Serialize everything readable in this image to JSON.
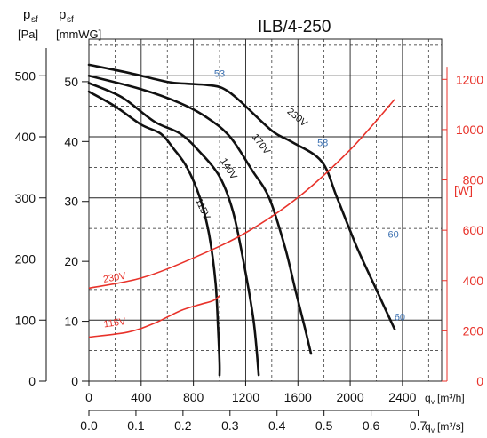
{
  "chart_data": {
    "type": "line",
    "title": "ILB/4-250",
    "grid": true,
    "left_axis_pa": {
      "label_main": "p",
      "label_sub": "sf",
      "unit": "[Pa]",
      "range": [
        0,
        560
      ],
      "ticks": [
        0,
        100,
        200,
        300,
        400,
        500
      ]
    },
    "left_axis_mmwg": {
      "label_main": "p",
      "label_sub": "sf",
      "unit": "[mmWG]",
      "ticks": [
        0,
        10,
        20,
        30,
        40,
        50
      ]
    },
    "x_axis_m3h": {
      "label_main": "q",
      "label_sub": "v",
      "unit": "[m³/h]",
      "range": [
        0,
        2700
      ],
      "ticks": [
        0,
        400,
        800,
        1200,
        1600,
        2000,
        2400
      ]
    },
    "x_axis_m3s": {
      "label_main": "q",
      "label_sub": "v",
      "unit": "[m³/s]",
      "ticks": [
        "0.0",
        "0.1",
        "0.2",
        "0.3",
        "0.4",
        "0.5",
        "0.6",
        "0.7"
      ]
    },
    "right_axis_w": {
      "unit": "[W]",
      "range": [
        0,
        1360
      ],
      "ticks": [
        0,
        200,
        400,
        600,
        800,
        1000,
        1200
      ]
    },
    "pressure_series": [
      {
        "name": "230V",
        "x": [
          0,
          300,
          600,
          750,
          900,
          1020,
          1150,
          1400,
          1550,
          1780,
          1900,
          2050,
          2200,
          2340
        ],
        "y": [
          518,
          505,
          490,
          487,
          485,
          480,
          460,
          410,
          392,
          360,
          300,
          220,
          150,
          85
        ]
      },
      {
        "name": "170V",
        "x": [
          0,
          400,
          700,
          900,
          1080,
          1250,
          1380,
          1500,
          1580,
          1650,
          1700
        ],
        "y": [
          500,
          478,
          455,
          432,
          400,
          345,
          300,
          220,
          150,
          90,
          45
        ]
      },
      {
        "name": "140V",
        "x": [
          0,
          250,
          500,
          700,
          850,
          1000,
          1100,
          1180,
          1260,
          1300
        ],
        "y": [
          488,
          465,
          425,
          405,
          375,
          335,
          280,
          200,
          100,
          10
        ]
      },
      {
        "name": "115V",
        "x": [
          0,
          200,
          400,
          550,
          650,
          750,
          850,
          920,
          970,
          990,
          1000,
          1000
        ],
        "y": [
          474,
          450,
          420,
          405,
          380,
          350,
          300,
          240,
          160,
          80,
          30,
          10
        ]
      }
    ],
    "power_series": [
      {
        "name": "230V",
        "x": [
          0,
          400,
          800,
          1200,
          1600,
          2000,
          2340
        ],
        "y": [
          370,
          410,
          490,
          590,
          730,
          920,
          1120
        ]
      },
      {
        "name": "115V",
        "x": [
          0,
          300,
          500,
          700,
          850,
          950,
          1000
        ],
        "y": [
          175,
          195,
          230,
          280,
          305,
          320,
          340
        ]
      }
    ],
    "annotations": [
      {
        "text": "53",
        "x": 1000,
        "y": 498,
        "color": "blue"
      },
      {
        "text": "58",
        "x": 1790,
        "y": 385,
        "color": "blue"
      },
      {
        "text": "60",
        "x": 2330,
        "y": 235,
        "color": "blue"
      },
      {
        "text": "60",
        "x": 2380,
        "y": 100,
        "color": "blue"
      },
      {
        "text": "230V",
        "x": 1580,
        "y": 428,
        "color": "black",
        "rotate": 40
      },
      {
        "text": "170V",
        "x": 1300,
        "y": 385,
        "color": "black",
        "rotate": 52
      },
      {
        "text": "140V",
        "x": 1050,
        "y": 345,
        "color": "black",
        "rotate": 58
      },
      {
        "text": "115V",
        "x": 850,
        "y": 280,
        "color": "black",
        "rotate": 65
      },
      {
        "text": "230V",
        "x": 200,
        "y": 100,
        "color": "red",
        "rotate": -10
      },
      {
        "text": "115V",
        "x": 200,
        "y": 55,
        "color": "red",
        "rotate": -8
      }
    ],
    "colors": {
      "curve": "#111111",
      "power": "#e8322a",
      "grid": "#222222",
      "blue_label": "#3a6fb0"
    }
  }
}
